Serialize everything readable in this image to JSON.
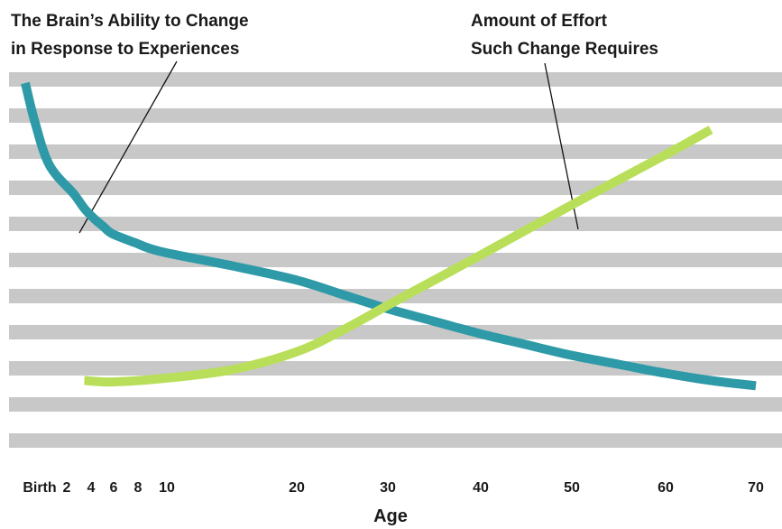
{
  "chart_data": {
    "type": "line",
    "xlabel": "Age",
    "ylabel": "",
    "x_ticks": [
      {
        "label": "Birth",
        "value": 0
      },
      {
        "label": "2",
        "value": 2
      },
      {
        "label": "4",
        "value": 4
      },
      {
        "label": "6",
        "value": 6
      },
      {
        "label": "8",
        "value": 8
      },
      {
        "label": "10",
        "value": 10
      },
      {
        "label": "20",
        "value": 20
      },
      {
        "label": "30",
        "value": 30
      },
      {
        "label": "40",
        "value": 40
      },
      {
        "label": "50",
        "value": 50
      },
      {
        "label": "60",
        "value": 60
      },
      {
        "label": "70",
        "value": 70
      }
    ],
    "ylim": [
      0,
      100
    ],
    "grid": "horizontal stripes",
    "series": [
      {
        "name": "The Brain’s Ability to Change in Response to Experiences",
        "name_lines": [
          "The Brain’s Ability to Change",
          "in Response to Experiences"
        ],
        "color": "#2e9aa7",
        "points": [
          [
            0,
            99
          ],
          [
            0.4,
            88
          ],
          [
            1,
            76
          ],
          [
            2,
            68
          ],
          [
            3,
            64
          ],
          [
            4,
            61
          ],
          [
            5,
            59
          ],
          [
            6,
            57
          ],
          [
            8,
            54.5
          ],
          [
            10,
            52
          ],
          [
            15,
            48
          ],
          [
            20,
            44
          ],
          [
            25,
            40
          ],
          [
            30,
            36
          ],
          [
            35,
            32.5
          ],
          [
            40,
            29
          ],
          [
            45,
            26
          ],
          [
            50,
            23
          ],
          [
            55,
            20.5
          ],
          [
            60,
            18
          ],
          [
            65,
            16
          ],
          [
            70,
            14.5
          ]
        ]
      },
      {
        "name": "Amount of Effort Such Change Requires",
        "name_lines": [
          "Amount of Effort",
          "Such Change Requires"
        ],
        "color": "#b9df5a",
        "points": [
          [
            3,
            16
          ],
          [
            6,
            15.6
          ],
          [
            10,
            16.5
          ],
          [
            15,
            19
          ],
          [
            20,
            24
          ],
          [
            25,
            30
          ],
          [
            30,
            37
          ],
          [
            35,
            44
          ],
          [
            40,
            51
          ],
          [
            45,
            58
          ],
          [
            50,
            65
          ],
          [
            55,
            72
          ],
          [
            60,
            79
          ],
          [
            65,
            86
          ]
        ]
      }
    ]
  }
}
